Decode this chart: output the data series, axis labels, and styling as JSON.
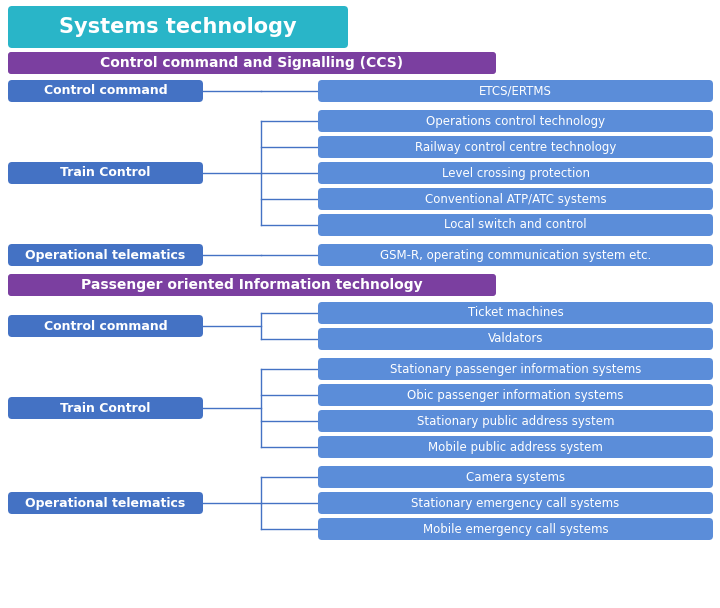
{
  "title": "Systems technology",
  "title_bg": "#29B5C8",
  "title_text_color": "#FFFFFF",
  "section1_label": "Control command and Signalling (CCS)",
  "section1_bg": "#7B3FA0",
  "section2_label": "Passenger oriented Information technology",
  "section2_bg": "#7B3FA0",
  "left_box_bg": "#4472C4",
  "right_box_bg": "#5B8DD9",
  "left_text_color": "#FFFFFF",
  "right_text_color": "#FFFFFF",
  "line_color": "#4472C4",
  "bg_color": "#FFFFFF",
  "section1_left": [
    {
      "label": "Control command",
      "right": [
        "ETCS/ERTMS"
      ]
    },
    {
      "label": "Train Control",
      "right": [
        "Operations control technology",
        "Railway control centre technology",
        "Level crossing protection",
        "Conventional ATP/ATC systems",
        "Local switch and control"
      ]
    },
    {
      "label": "Operational telematics",
      "right": [
        "GSM-R, operating communication system etc."
      ]
    }
  ],
  "section2_left": [
    {
      "label": "Control command",
      "right": [
        "Ticket machines",
        "Valdators"
      ]
    },
    {
      "label": "Train Control",
      "right": [
        "Stationary passenger information systems",
        "Obic passenger information systems",
        "Stationary public address system",
        "Mobile public address system"
      ]
    },
    {
      "label": "Operational telematics",
      "right": [
        "Camera systems",
        "Stationary emergency call systems",
        "Mobile emergency call systems"
      ]
    }
  ]
}
